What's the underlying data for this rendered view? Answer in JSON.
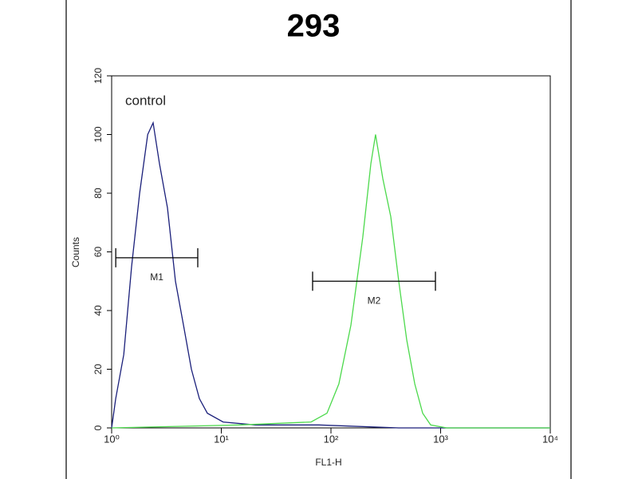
{
  "chart_data": {
    "type": "histogram-line",
    "title": "293",
    "xlabel": "FL1-H",
    "ylabel": "Counts",
    "xscale": "log",
    "xlim": [
      1,
      10000
    ],
    "ylim": [
      0,
      120
    ],
    "xticks": [
      {
        "value": 1,
        "label": "10⁰"
      },
      {
        "value": 10,
        "label": "10¹"
      },
      {
        "value": 100,
        "label": "10²"
      },
      {
        "value": 1000,
        "label": "10³"
      },
      {
        "value": 10000,
        "label": "10⁴"
      }
    ],
    "yticks": [
      0,
      20,
      40,
      60,
      80,
      100,
      120
    ],
    "series": [
      {
        "name": "control",
        "color": "#1a1f7a",
        "x": [
          1,
          1.09,
          1.29,
          1.52,
          1.8,
          2.13,
          2.39,
          2.73,
          3.23,
          3.82,
          4.52,
          5.34,
          6.31,
          7.46,
          10.4,
          20.4,
          77.8,
          415,
          10000
        ],
        "values": [
          0,
          10,
          25,
          55,
          80,
          100,
          104,
          90,
          75,
          50,
          35,
          20,
          10,
          5,
          2,
          1,
          1,
          0,
          0
        ]
      },
      {
        "color": "#4cd94c",
        "x": [
          1,
          14.6,
          65.8,
          92,
          118,
          152,
          195,
          231,
          255,
          297,
          351,
          415,
          491,
          581,
          686,
          811,
          1135,
          10000
        ],
        "values": [
          0,
          1,
          2,
          5,
          15,
          35,
          65,
          90,
          100,
          85,
          72,
          50,
          30,
          15,
          5,
          1,
          0,
          0
        ]
      }
    ],
    "markers": [
      {
        "label": "M1",
        "x": [
          1.09,
          6.1
        ],
        "y": 58
      },
      {
        "label": "M2",
        "x": [
          68,
          897
        ],
        "y": 50
      }
    ]
  }
}
